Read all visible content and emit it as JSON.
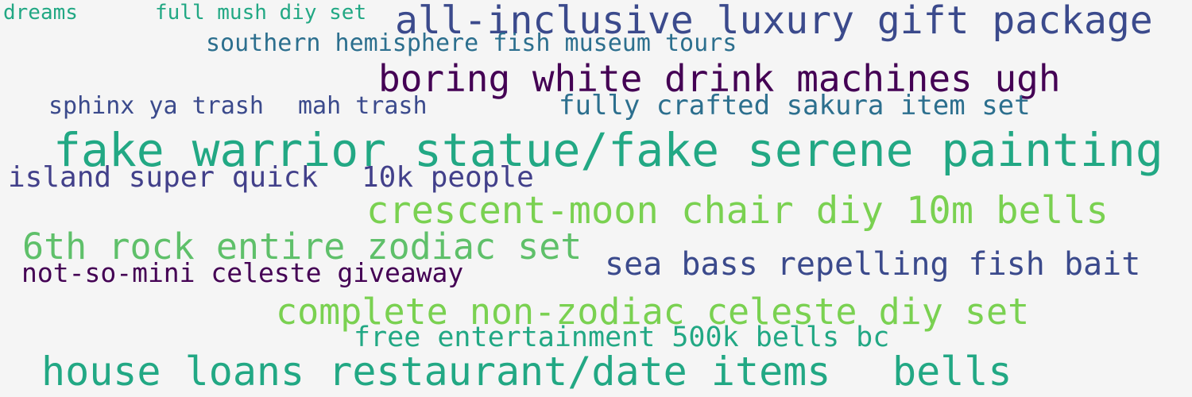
{
  "words": [
    {
      "text": "dreams",
      "color": "#22a884"
    },
    {
      "text": "full mush diy set",
      "color": "#22a884"
    },
    {
      "text": "all-inclusive luxury gift package",
      "color": "#3b4a8c"
    },
    {
      "text": "southern hemisphere fish museum tours",
      "color": "#2c6f8e"
    },
    {
      "text": "boring white drink machines ugh",
      "color": "#440154"
    },
    {
      "text": "sphinx ya trash",
      "color": "#3b4a8c"
    },
    {
      "text": "mah trash",
      "color": "#3b4a8c"
    },
    {
      "text": "fully crafted sakura item set",
      "color": "#2c6f8e"
    },
    {
      "text": "fake warrior statue/fake serene painting",
      "color": "#22a884"
    },
    {
      "text": "island super quick",
      "color": "#42408a"
    },
    {
      "text": "10k people",
      "color": "#42408a"
    },
    {
      "text": "crescent-moon chair diy 10m bells",
      "color": "#7ad151"
    },
    {
      "text": "6th rock entire zodiac set",
      "color": "#5fc06a"
    },
    {
      "text": "sea bass repelling fish bait",
      "color": "#3b4a8c"
    },
    {
      "text": "not-so-mini celeste giveaway",
      "color": "#440154"
    },
    {
      "text": "complete non-zodiac celeste diy set",
      "color": "#7ad151"
    },
    {
      "text": "free entertainment 500k bells bc",
      "color": "#22a884"
    },
    {
      "text": "house loans restaurant/date items",
      "color": "#22a884"
    },
    {
      "text": "bells",
      "color": "#22a884"
    }
  ]
}
